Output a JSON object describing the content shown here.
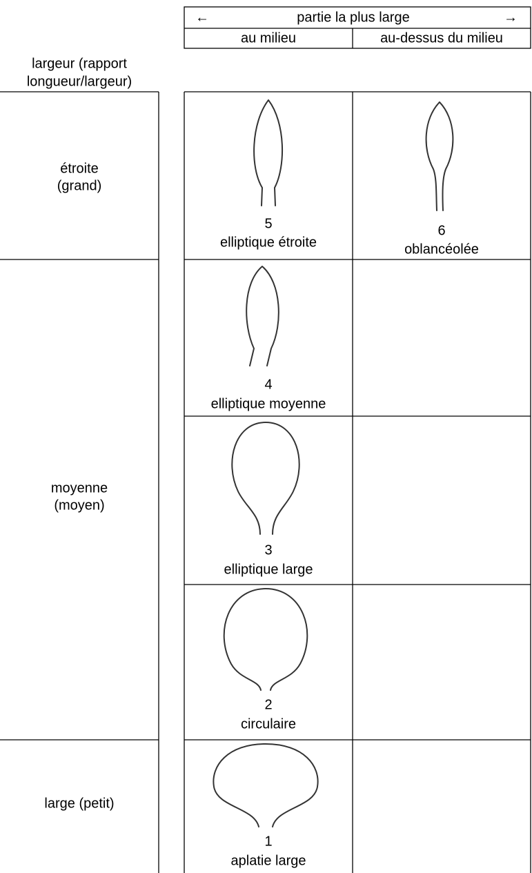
{
  "header": {
    "arrow_left": "←",
    "title": "partie la plus large",
    "arrow_right": "→",
    "columns": [
      "au milieu",
      "au-dessus du milieu"
    ],
    "row_label": [
      "largeur (rapport",
      "longueur/largeur)"
    ]
  },
  "row_groups": [
    {
      "label": [
        "étroite",
        "(grand)"
      ]
    },
    {
      "label": [
        "moyenne",
        "(moyen)"
      ]
    },
    {
      "label": [
        "large (petit)"
      ]
    }
  ],
  "leaves": [
    {
      "number": 5,
      "name": "elliptique étroite"
    },
    {
      "number": 6,
      "name": "oblancéolée"
    },
    {
      "number": 4,
      "name": "elliptique moyenne"
    },
    {
      "number": 3,
      "name": "elliptique large"
    },
    {
      "number": 2,
      "name": "circulaire"
    },
    {
      "number": 1,
      "name": "aplatie large"
    }
  ]
}
